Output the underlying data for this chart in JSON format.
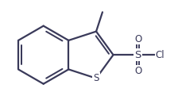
{
  "bg_color": "#ffffff",
  "line_color": "#3a3a5a",
  "line_width": 1.6,
  "figsize": [
    2.24,
    1.21
  ],
  "dpi": 100,
  "S_label": "S",
  "Cl_label": "Cl",
  "O_label": "O",
  "font_size": 8.5
}
